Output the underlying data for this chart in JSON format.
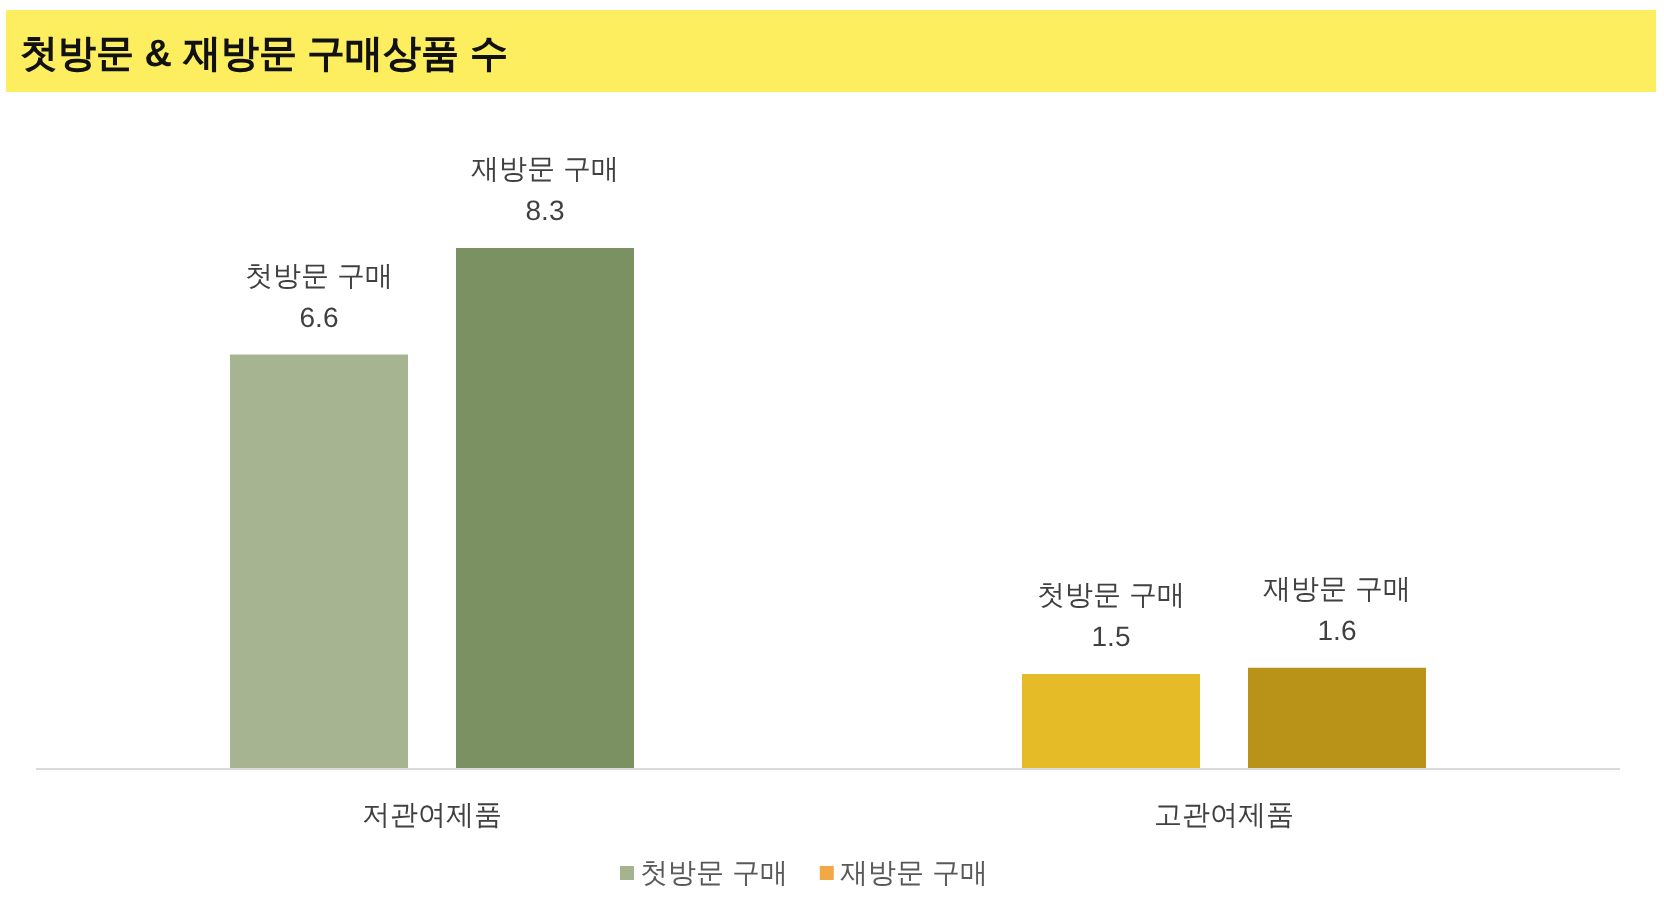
{
  "chart_data": {
    "type": "bar",
    "title": "첫방문 & 재방문 구매상품 수",
    "categories": [
      "저관여제품",
      "고관여제품"
    ],
    "series": [
      {
        "name": "첫방문 구매",
        "color": "#a5b48f",
        "colors": [
          "#a6b491",
          "#e6bb28"
        ],
        "values": [
          6.6,
          1.5
        ]
      },
      {
        "name": "재방문 구매",
        "color": "#f2a845",
        "colors": [
          "#7b9161",
          "#b89317"
        ],
        "values": [
          8.3,
          1.6
        ]
      }
    ],
    "data_labels": true,
    "legend": "bottom"
  }
}
